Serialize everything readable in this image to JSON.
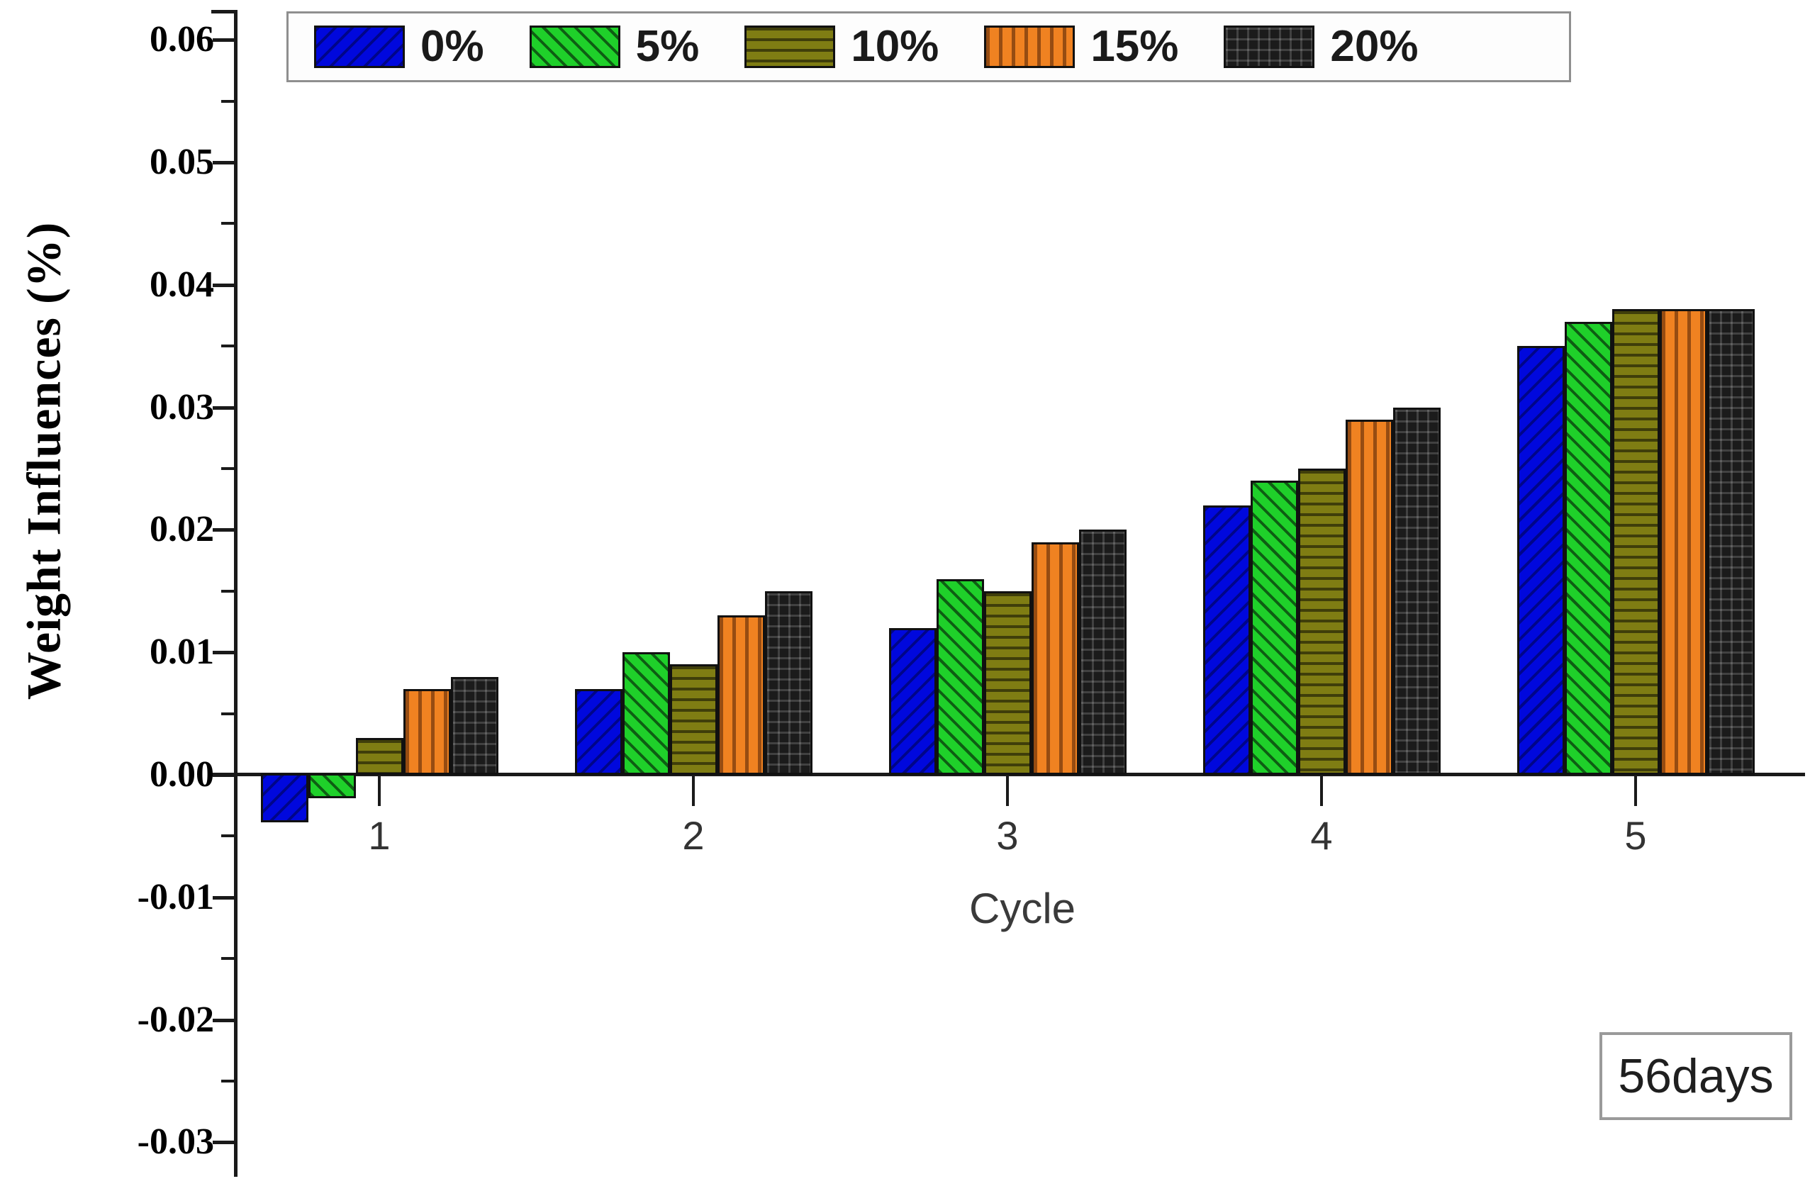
{
  "chart_data": {
    "type": "bar",
    "title": "",
    "xlabel": "Cycle",
    "ylabel": "Weight Influences (%)",
    "categories": [
      "1",
      "2",
      "3",
      "4",
      "5"
    ],
    "series": [
      {
        "name": "0%",
        "color": "#0008dd",
        "pattern": "diag-up",
        "values": [
          -0.004,
          0.007,
          0.012,
          0.022,
          0.035
        ]
      },
      {
        "name": "5%",
        "color": "#1fd02a",
        "pattern": "diag-down",
        "values": [
          -0.002,
          0.01,
          0.016,
          0.024,
          0.037
        ]
      },
      {
        "name": "10%",
        "color": "#7f7d13",
        "pattern": "horizontal",
        "values": [
          0.003,
          0.009,
          0.015,
          0.025,
          0.038
        ]
      },
      {
        "name": "15%",
        "color": "#f08221",
        "pattern": "vertical",
        "values": [
          0.007,
          0.013,
          0.019,
          0.029,
          0.038
        ]
      },
      {
        "name": "20%",
        "color": "#1b1b1b",
        "pattern": "grid",
        "values": [
          0.008,
          0.015,
          0.02,
          0.03,
          0.038
        ]
      }
    ],
    "ylim": [
      -0.03,
      0.06
    ],
    "ytick_step": 0.01,
    "yminor_step": 0.005,
    "ytick_labels": [
      "0.06",
      "0.05",
      "0.04",
      "0.03",
      "0.02",
      "0.01",
      "0.00",
      "-0.01",
      "-0.02",
      "-0.03"
    ],
    "legend_position": "top",
    "grid": false,
    "annotation": "56days"
  }
}
